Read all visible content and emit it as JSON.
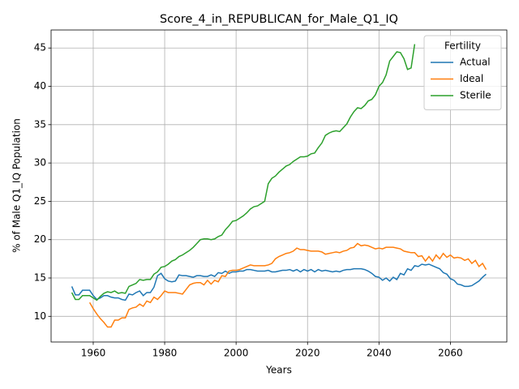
{
  "chart_data": {
    "type": "line",
    "title": "Score_4_in_REPUBLICAN_for_Male_Q1_IQ",
    "x_label": "Years",
    "y_label": "% of Male Q1_IQ Population",
    "legend_title": "Fertility",
    "legend_position": "upper right",
    "grid": true,
    "xlim": [
      1948.2,
      2075.8
    ],
    "ylim": [
      6.65,
      47.35
    ],
    "xticks": [
      1960,
      1980,
      2000,
      2020,
      2040,
      2060
    ],
    "yticks": [
      10,
      15,
      20,
      25,
      30,
      35,
      40,
      45
    ],
    "x": [
      1954,
      1955,
      1956,
      1957,
      1958,
      1959,
      1960,
      1961,
      1962,
      1963,
      1964,
      1965,
      1966,
      1967,
      1968,
      1969,
      1970,
      1971,
      1972,
      1973,
      1974,
      1975,
      1976,
      1977,
      1978,
      1979,
      1980,
      1981,
      1982,
      1983,
      1984,
      1985,
      1986,
      1987,
      1988,
      1989,
      1990,
      1991,
      1992,
      1993,
      1994,
      1995,
      1996,
      1997,
      1998,
      1999,
      2000,
      2001,
      2002,
      2003,
      2004,
      2005,
      2006,
      2007,
      2008,
      2009,
      2010,
      2011,
      2012,
      2013,
      2014,
      2015,
      2016,
      2017,
      2018,
      2019,
      2020,
      2021,
      2022,
      2023,
      2024,
      2025,
      2026,
      2027,
      2028,
      2029,
      2030,
      2031,
      2032,
      2033,
      2034,
      2035,
      2036,
      2037,
      2038,
      2039,
      2040,
      2041,
      2042,
      2043,
      2044,
      2045,
      2046,
      2047,
      2048,
      2049,
      2050,
      2051,
      2052,
      2053,
      2054,
      2055,
      2056,
      2057,
      2058,
      2059,
      2060,
      2061,
      2062,
      2063,
      2064,
      2065,
      2066,
      2067,
      2068,
      2069,
      2070
    ],
    "series": [
      {
        "name": "Actual",
        "color": "#1f77b4",
        "values": [
          13.9,
          12.8,
          12.8,
          13.4,
          13.4,
          13.4,
          12.7,
          12.2,
          12.4,
          12.7,
          12.7,
          12.5,
          12.4,
          12.4,
          12.2,
          12.1,
          12.9,
          12.8,
          13.1,
          13.3,
          12.7,
          13.1,
          13.1,
          13.8,
          15.3,
          15.6,
          14.9,
          14.6,
          14.5,
          14.6,
          15.4,
          15.3,
          15.3,
          15.2,
          15.1,
          15.3,
          15.3,
          15.2,
          15.2,
          15.4,
          15.2,
          15.7,
          15.6,
          15.9,
          15.6,
          15.8,
          15.8,
          15.9,
          15.9,
          16.1,
          16.1,
          16.0,
          15.9,
          15.9,
          15.9,
          16.0,
          15.8,
          15.8,
          15.9,
          16.0,
          16.0,
          16.1,
          15.9,
          16.1,
          15.8,
          16.1,
          15.9,
          16.1,
          15.8,
          16.1,
          15.9,
          16.0,
          15.9,
          15.8,
          15.9,
          15.8,
          16.0,
          16.1,
          16.1,
          16.2,
          16.2,
          16.2,
          16.1,
          15.9,
          15.6,
          15.2,
          15.1,
          14.7,
          15.0,
          14.6,
          15.1,
          14.8,
          15.6,
          15.4,
          16.2,
          16.0,
          16.6,
          16.5,
          16.8,
          16.7,
          16.8,
          16.6,
          16.4,
          16.2,
          15.7,
          15.5,
          14.9,
          14.7,
          14.2,
          14.1,
          13.9,
          13.9,
          14.0,
          14.3,
          14.6,
          15.1,
          15.5
        ]
      },
      {
        "name": "Ideal",
        "color": "#ff7f0e",
        "values": [
          null,
          null,
          null,
          null,
          null,
          11.8,
          11.0,
          10.3,
          9.7,
          9.2,
          8.6,
          8.6,
          9.5,
          9.5,
          9.8,
          9.8,
          10.9,
          11.1,
          11.2,
          11.6,
          11.3,
          12.0,
          11.8,
          12.5,
          12.2,
          12.7,
          13.3,
          13.1,
          13.1,
          13.1,
          13.0,
          12.9,
          13.5,
          14.1,
          14.3,
          14.4,
          14.4,
          14.1,
          14.7,
          14.2,
          14.7,
          14.5,
          15.3,
          15.2,
          15.9,
          16.0,
          16.0,
          16.1,
          16.3,
          16.5,
          16.7,
          16.6,
          16.6,
          16.6,
          16.6,
          16.7,
          16.9,
          17.5,
          17.8,
          18.0,
          18.2,
          18.3,
          18.5,
          18.9,
          18.7,
          18.7,
          18.6,
          18.5,
          18.5,
          18.5,
          18.4,
          18.1,
          18.2,
          18.3,
          18.4,
          18.3,
          18.5,
          18.6,
          18.9,
          19.0,
          19.5,
          19.2,
          19.3,
          19.2,
          19.0,
          18.8,
          18.9,
          18.8,
          19.0,
          19.0,
          19.0,
          18.9,
          18.8,
          18.5,
          18.4,
          18.3,
          18.3,
          17.8,
          17.9,
          17.2,
          17.8,
          17.2,
          18.0,
          17.5,
          18.2,
          17.7,
          18.0,
          17.6,
          17.7,
          17.6,
          17.3,
          17.5,
          16.9,
          17.3,
          16.5,
          16.9,
          16.1
        ]
      },
      {
        "name": "Sterile",
        "color": "#2ca02c",
        "values": [
          13.1,
          12.2,
          12.2,
          12.7,
          12.7,
          12.7,
          12.4,
          12.1,
          12.6,
          13.0,
          13.2,
          13.1,
          13.3,
          13.0,
          13.1,
          13.0,
          13.9,
          14.1,
          14.3,
          14.8,
          14.7,
          14.8,
          14.8,
          15.5,
          15.8,
          16.4,
          16.5,
          16.8,
          17.2,
          17.4,
          17.8,
          18.0,
          18.3,
          18.6,
          19.0,
          19.5,
          20.0,
          20.1,
          20.1,
          20.0,
          20.1,
          20.4,
          20.6,
          21.3,
          21.8,
          22.4,
          22.5,
          22.8,
          23.1,
          23.5,
          24.0,
          24.3,
          24.4,
          24.7,
          25.0,
          27.3,
          28.0,
          28.3,
          28.8,
          29.2,
          29.6,
          29.8,
          30.2,
          30.5,
          30.8,
          30.8,
          30.9,
          31.2,
          31.3,
          32.0,
          32.6,
          33.6,
          33.9,
          34.1,
          34.2,
          34.1,
          34.6,
          35.1,
          36.0,
          36.7,
          37.2,
          37.1,
          37.5,
          38.1,
          38.3,
          38.9,
          40.0,
          40.5,
          41.5,
          43.3,
          43.9,
          44.5,
          44.4,
          43.6,
          42.2,
          42.4,
          45.5,
          null,
          null,
          null,
          null,
          null,
          null,
          null,
          null,
          null,
          null,
          null,
          null,
          null,
          null,
          null,
          null,
          null,
          null,
          null,
          null
        ]
      }
    ]
  }
}
